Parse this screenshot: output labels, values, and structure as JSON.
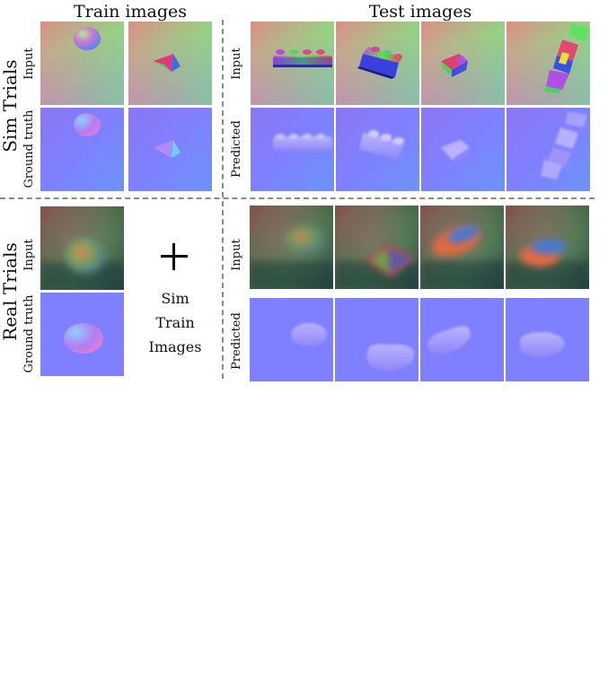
{
  "headers": {
    "train": "Train images",
    "test": "Test images"
  },
  "rows": {
    "sim": "Sim Trials",
    "real": "Real Trials"
  },
  "labels": {
    "input": "Input",
    "ground_truth": "Ground truth",
    "predicted": "Predicted"
  },
  "middle_note": {
    "line1": "Sim",
    "line2": "Train",
    "line3": "Images"
  },
  "colors": {
    "normal_map_blue": "#7f80ff",
    "sim_bg_top": "#86e878",
    "sim_bg_bottom": "#9fa0e8",
    "real_bg": "#5a5a50",
    "separator": "#8a8a8a"
  },
  "tiles": {
    "sim_train_input": [
      "sphere",
      "pyramid"
    ],
    "sim_train_ground_truth": [
      "sphere",
      "pyramid"
    ],
    "sim_test_input": [
      "lego-brick",
      "lego-brick",
      "block",
      "stacked-bricks"
    ],
    "sim_test_predicted": [
      "lego-brick",
      "lego-brick",
      "block",
      "stacked-bricks"
    ],
    "real_train_input": [
      "tactile-blob"
    ],
    "real_train_ground_truth": [
      "sphere"
    ],
    "real_test_input": [
      "tactile-blob",
      "tactile-blob",
      "tactile-blob",
      "tactile-blob"
    ],
    "real_test_predicted": [
      "ellipse",
      "blob",
      "blob",
      "blob"
    ]
  }
}
